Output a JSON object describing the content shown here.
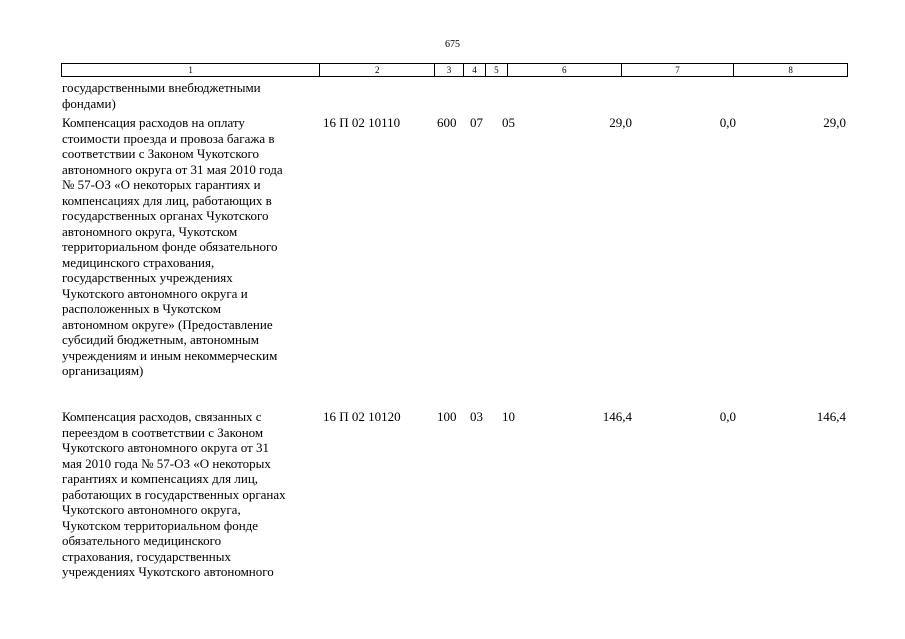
{
  "page_number": "675",
  "header": [
    "1",
    "2",
    "3",
    "4",
    "5",
    "6",
    "7",
    "8"
  ],
  "continuation": "государственными внебюджетными\nфондами)",
  "rows": [
    {
      "name": "Компенсация расходов на оплату\nстоимости проезда и провоза багажа в\nсоответствии с Законом Чукотского\nавтономного округа от 31 мая 2010 года\n№ 57-ОЗ «О некоторых гарантиях и\nкомпенсациях для лиц, работающих в\nгосударственных органах Чукотского\nавтономного округа, Чукотском\nтерриториальном фонде обязательного\nмедицинского страхования,\nгосударственных учреждениях\nЧукотского автономного округа и\nрасположенных в Чукотском\nавтономном округе» (Предоставление\nсубсидий бюджетным, автономным\nучреждениям и иным некоммерческим\nорганизациям)",
      "code": "16 П 02 10110",
      "c3": "600",
      "c4": "07",
      "c5": "05",
      "c6": "29,0",
      "c7": "0,0",
      "c8": "29,0"
    },
    {
      "name": "Компенсация расходов, связанных с\nпереездом в соответствии с Законом\nЧукотского автономного округа от 31\nмая 2010 года № 57-ОЗ «О некоторых\nгарантиях и компенсациях для лиц,\nработающих в государственных органах\nЧукотского автономного округа,\nЧукотском территориальном фонде\nобязательного медицинского\nстрахования, государственных\nучреждениях Чукотского автономного",
      "code": "16 П 02 10120",
      "c3": "100",
      "c4": "03",
      "c5": "10",
      "c6": "146,4",
      "c7": "0,0",
      "c8": "146,4"
    }
  ]
}
